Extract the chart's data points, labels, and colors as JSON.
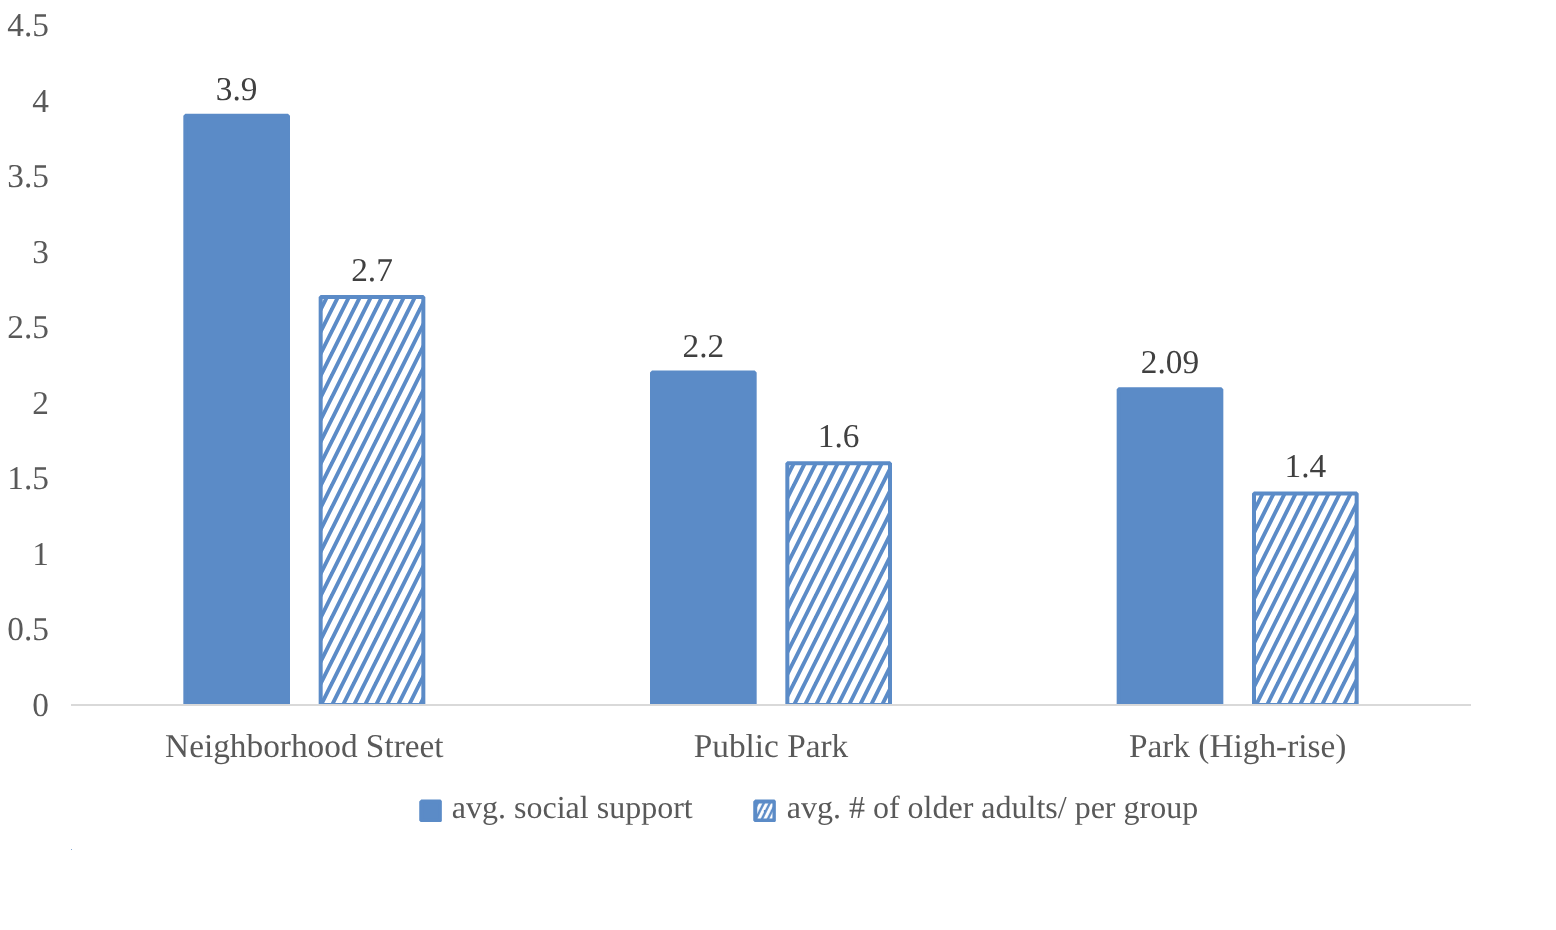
{
  "chart_data": {
    "type": "bar",
    "categories": [
      "Neighborhood Street",
      "Public Park",
      "Park (High-rise)"
    ],
    "series": [
      {
        "name": "avg. social support",
        "color": "#5b8bc7",
        "values": [
          3.9,
          2.2,
          2.09
        ]
      },
      {
        "name": "avg. # of older adults/ per group",
        "color": "#5b8bc7",
        "values": [
          2.7,
          1.6,
          1.4
        ]
      }
    ],
    "ylim": [
      0,
      4.5
    ],
    "yticks": [
      0,
      0.5,
      1,
      1.5,
      2,
      2.5,
      3,
      3.5,
      4,
      4.5
    ],
    "grid": false,
    "legend": "bottom",
    "data_labels": true
  }
}
